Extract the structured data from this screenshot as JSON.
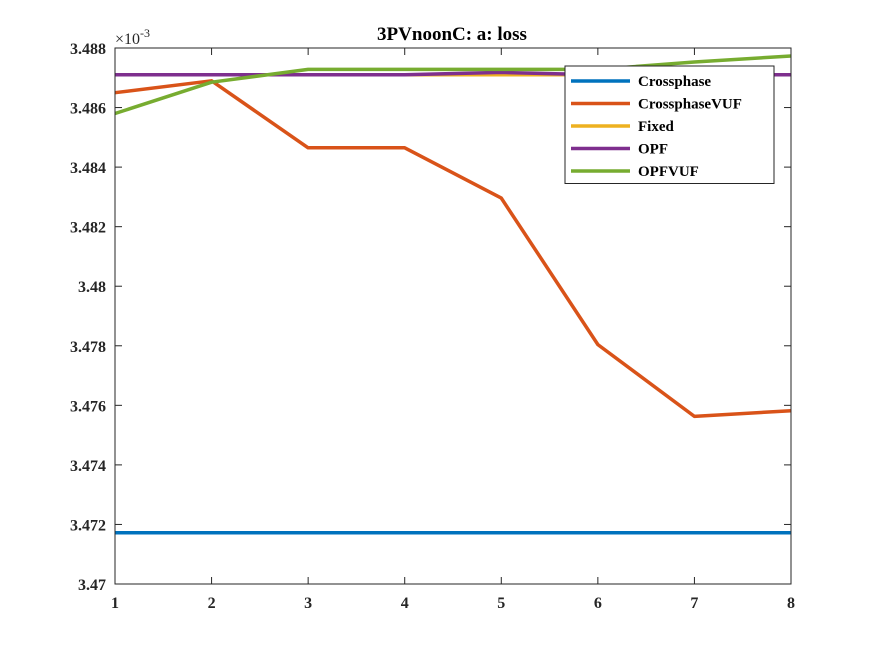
{
  "chart_data": {
    "type": "line",
    "title": "3PVnoonC: a: loss",
    "xlabel": "",
    "ylabel": "",
    "y_exponent_label": "×10",
    "y_exponent_power": "-3",
    "xlim": [
      1,
      8
    ],
    "ylim": [
      3.47,
      3.488
    ],
    "x_ticks": [
      1,
      2,
      3,
      4,
      5,
      6,
      7,
      8
    ],
    "x_tick_labels": [
      "1",
      "2",
      "3",
      "4",
      "5",
      "6",
      "7",
      "8"
    ],
    "y_ticks": [
      3.47,
      3.472,
      3.474,
      3.476,
      3.478,
      3.48,
      3.482,
      3.484,
      3.486,
      3.488
    ],
    "y_tick_labels": [
      "3.47",
      "3.472",
      "3.474",
      "3.476",
      "3.478",
      "3.48",
      "3.482",
      "3.484",
      "3.486",
      "3.488"
    ],
    "grid": false,
    "legend_position": "top-right",
    "x": [
      1,
      2,
      3,
      4,
      5,
      6,
      7,
      8
    ],
    "series": [
      {
        "name": "Crossphase",
        "color": "#0072BD",
        "values": [
          3.47172,
          3.47172,
          3.47172,
          3.47172,
          3.47172,
          3.47172,
          3.47172,
          3.47172
        ]
      },
      {
        "name": "CrossphaseVUF",
        "color": "#D95319",
        "values": [
          3.4865,
          3.4869,
          3.48465,
          3.48465,
          3.48296,
          3.47804,
          3.47563,
          3.47582
        ]
      },
      {
        "name": "Fixed",
        "color": "#EDB120",
        "values": [
          3.4871,
          3.4871,
          3.4871,
          3.4871,
          3.4871,
          3.4871,
          3.4871,
          3.4871
        ]
      },
      {
        "name": "OPF",
        "color": "#7E2F8E",
        "values": [
          3.4871,
          3.4871,
          3.4871,
          3.4871,
          3.48718,
          3.4871,
          3.4871,
          3.4871
        ]
      },
      {
        "name": "OPFVUF",
        "color": "#77AC30",
        "values": [
          3.4858,
          3.48685,
          3.48728,
          3.48728,
          3.48728,
          3.48728,
          3.48753,
          3.48773
        ]
      }
    ]
  }
}
